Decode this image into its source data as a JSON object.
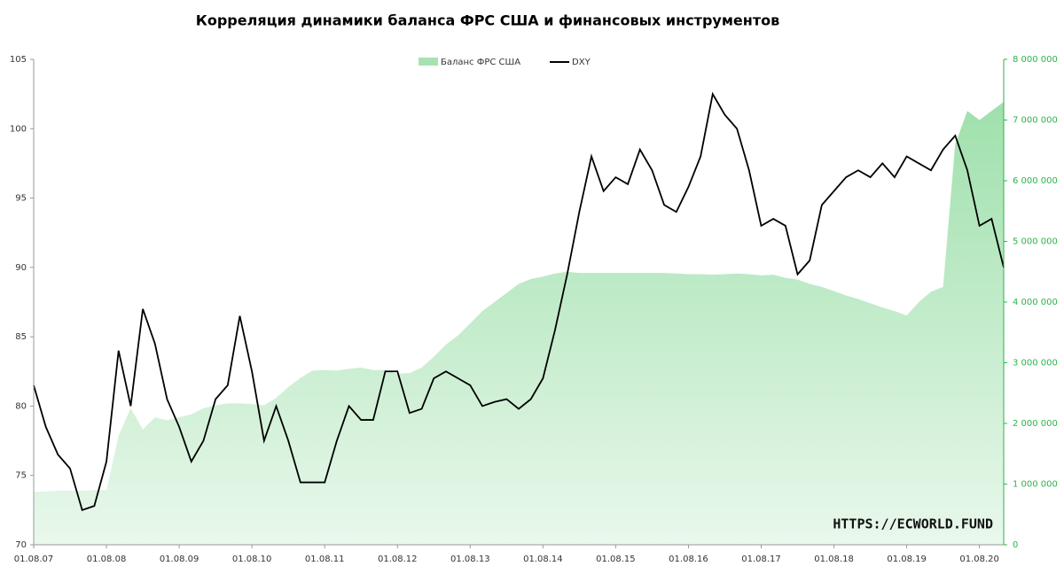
{
  "chart_data": {
    "type": "area_line",
    "title": "Корреляция динамики баланса ФРС  США  и финансовых инструментов",
    "annotation": "HTTPS://ECWORLD.FUND",
    "legend": "top",
    "x": [
      "01.08.07",
      "01.10.07",
      "01.12.07",
      "01.02.08",
      "01.04.08",
      "01.06.08",
      "01.08.08",
      "01.10.08",
      "01.12.08",
      "01.02.09",
      "01.04.09",
      "01.06.09",
      "01.08.09",
      "01.10.09",
      "01.12.09",
      "01.02.10",
      "01.04.10",
      "01.06.10",
      "01.08.10",
      "01.10.10",
      "01.12.10",
      "01.02.11",
      "01.04.11",
      "01.06.11",
      "01.08.11",
      "01.10.11",
      "01.12.11",
      "01.02.12",
      "01.04.12",
      "01.06.12",
      "01.08.12",
      "01.10.12",
      "01.12.12",
      "01.02.13",
      "01.04.13",
      "01.06.13",
      "01.08.13",
      "01.10.13",
      "01.12.13",
      "01.02.14",
      "01.04.14",
      "01.06.14",
      "01.08.14",
      "01.10.14",
      "01.12.14",
      "01.02.15",
      "01.04.15",
      "01.06.15",
      "01.08.15",
      "01.10.15",
      "01.12.15",
      "01.02.16",
      "01.04.16",
      "01.06.16",
      "01.08.16",
      "01.10.16",
      "01.12.16",
      "01.02.17",
      "01.04.17",
      "01.06.17",
      "01.08.17",
      "01.10.17",
      "01.12.17",
      "01.02.18",
      "01.04.18",
      "01.06.18",
      "01.08.18",
      "01.10.18",
      "01.12.18",
      "01.02.19",
      "01.04.19",
      "01.06.19",
      "01.08.19",
      "01.10.19",
      "01.12.19",
      "01.02.20",
      "01.04.20",
      "01.06.20",
      "01.08.20",
      "01.10.20",
      "01.12.20"
    ],
    "xticks": [
      "01.08.07",
      "01.08.08",
      "01.08.09",
      "01.08.10",
      "01.08.11",
      "01.08.12",
      "01.08.13",
      "01.08.14",
      "01.08.15",
      "01.08.16",
      "01.08.17",
      "01.08.18",
      "01.08.19",
      "01.08.20"
    ],
    "ylim": [
      70,
      105
    ],
    "yticks": [
      70,
      75,
      80,
      85,
      90,
      95,
      100,
      105
    ],
    "y2lim": [
      0,
      8000000
    ],
    "y2ticks": [
      0,
      {
        "value": 1000000,
        "label": "1 000 000"
      },
      {
        "value": 2000000,
        "label": "2 000 000"
      },
      {
        "value": 3000000,
        "label": "3 000 000"
      },
      {
        "value": 4000000,
        "label": "4 000 000"
      },
      {
        "value": 5000000,
        "label": "5 000 000"
      },
      {
        "value": 6000000,
        "label": "6 000 000"
      },
      {
        "value": 7000000,
        "label": "7 000 000"
      },
      {
        "value": 8000000,
        "label": "8 000 000"
      }
    ],
    "y2color": "#2db34a",
    "series": [
      {
        "name": "Баланс ФРС США",
        "color": "#a6e3b2",
        "axis": "y2",
        "kind": "area",
        "values": [
          870000,
          880000,
          890000,
          890000,
          890000,
          900000,
          900000,
          1800000,
          2250000,
          1900000,
          2100000,
          2050000,
          2100000,
          2150000,
          2250000,
          2300000,
          2330000,
          2330000,
          2320000,
          2300000,
          2420000,
          2600000,
          2750000,
          2870000,
          2880000,
          2870000,
          2900000,
          2920000,
          2880000,
          2880000,
          2820000,
          2830000,
          2920000,
          3100000,
          3300000,
          3450000,
          3650000,
          3850000,
          4000000,
          4150000,
          4300000,
          4380000,
          4420000,
          4470000,
          4500000,
          4480000,
          4480000,
          4480000,
          4480000,
          4480000,
          4480000,
          4480000,
          4480000,
          4470000,
          4460000,
          4460000,
          4450000,
          4460000,
          4470000,
          4460000,
          4440000,
          4450000,
          4400000,
          4370000,
          4300000,
          4250000,
          4180000,
          4110000,
          4050000,
          3980000,
          3910000,
          3850000,
          3780000,
          4000000,
          4170000,
          4250000,
          6600000,
          7150000,
          7000000,
          7150000,
          7300000
        ]
      },
      {
        "name": "DXY",
        "color": "#000000",
        "axis": "y",
        "kind": "line",
        "values": [
          81.5,
          78.5,
          76.5,
          75.5,
          72.5,
          72.8,
          76,
          84,
          80,
          87,
          84.5,
          80.5,
          78.5,
          76,
          77.5,
          80.5,
          81.5,
          86.5,
          82.5,
          77.5,
          80,
          77.5,
          74.5,
          74.5,
          74.5,
          77.5,
          80,
          79,
          79,
          82.5,
          82.5,
          79.5,
          79.8,
          82,
          82.5,
          82,
          81.5,
          80,
          80.3,
          80.5,
          79.8,
          80.5,
          82,
          85.5,
          89.5,
          94,
          98,
          95.5,
          96.5,
          96,
          98.5,
          97,
          94.5,
          94,
          95.8,
          98,
          102.5,
          101,
          100,
          97,
          93,
          93.5,
          93,
          89.5,
          90.5,
          94.5,
          95.5,
          96.5,
          97,
          96.5,
          97.5,
          96.5,
          98,
          97.5,
          97,
          98.5,
          99.5,
          97,
          93,
          93.5,
          90
        ]
      }
    ]
  }
}
